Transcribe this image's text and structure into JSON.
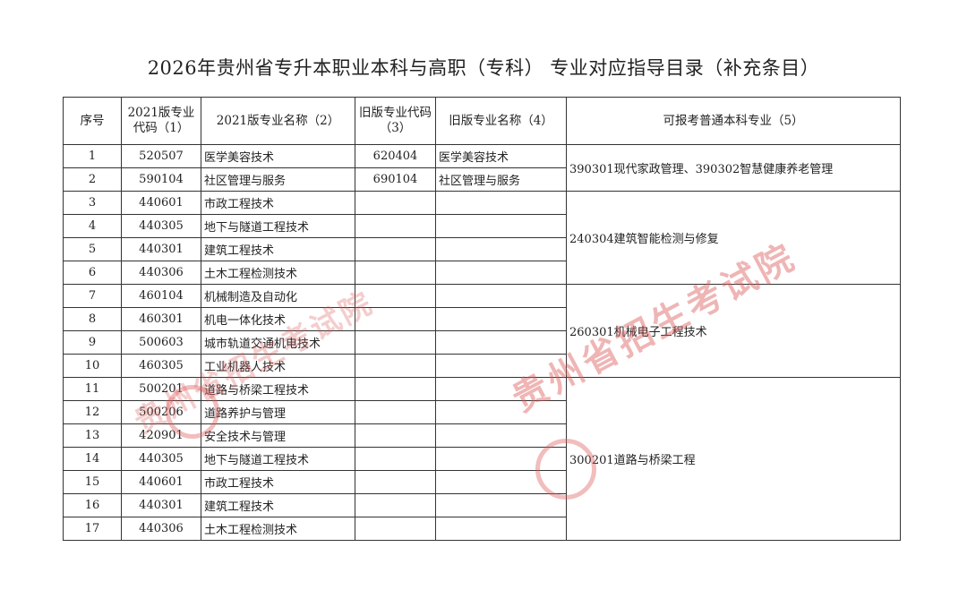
{
  "title": "2026年贵州省专升本职业本科与高职（专科） 专业对应指导目录（补充条目）",
  "headers": [
    "序号",
    "2021版专业代码（1）",
    "2021版专业名称（2）",
    "旧版专业代码（3）",
    "旧版专业名称（4）",
    "可报考普通本科专业（5）"
  ],
  "rows": [
    [
      "1",
      "520507",
      "医学美容技术",
      "620404",
      "医学美容技术"
    ],
    [
      "2",
      "590104",
      "社区管理与服务",
      "690104",
      "社区管理与服务"
    ],
    [
      "3",
      "440601",
      "市政工程技术",
      "",
      ""
    ],
    [
      "4",
      "440305",
      "地下与隧道工程技术",
      "",
      ""
    ],
    [
      "5",
      "440301",
      "建筑工程技术",
      "",
      ""
    ],
    [
      "6",
      "440306",
      "土木工程检测技术",
      "",
      ""
    ],
    [
      "7",
      "460104",
      "机械制造及自动化",
      "",
      ""
    ],
    [
      "8",
      "460301",
      "机电一体化技术",
      "",
      ""
    ],
    [
      "9",
      "500603",
      "城市轨道交通机电技术",
      "",
      ""
    ],
    [
      "10",
      "460305",
      "工业机器人技术",
      "",
      ""
    ],
    [
      "11",
      "500201",
      "道路与桥梁工程技术",
      "",
      ""
    ],
    [
      "12",
      "500206",
      "道路养护与管理",
      "",
      ""
    ],
    [
      "13",
      "420901",
      "安全技术与管理",
      "",
      ""
    ],
    [
      "14",
      "440305",
      "地下与隧道工程技术",
      "",
      ""
    ],
    [
      "15",
      "440601",
      "市政工程技术",
      "",
      ""
    ],
    [
      "16",
      "440301",
      "建筑工程技术",
      "",
      ""
    ],
    [
      "17",
      "440306",
      "土木工程检测技术",
      "",
      ""
    ]
  ],
  "groups": [
    {
      "span": 2,
      "text": "390301现代家政管理、390302智慧健康养老管理"
    },
    {
      "span": 4,
      "text": "240304建筑智能检测与修复"
    },
    {
      "span": 4,
      "text": "260301机械电子工程技术"
    },
    {
      "span": 7,
      "text": "300201道路与桥梁工程"
    }
  ],
  "watermark": "贵州省招生考试院",
  "watermark_color": "#dc5a5a"
}
